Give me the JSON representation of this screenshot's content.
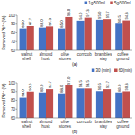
{
  "chart_data": [
    {
      "type": "bar",
      "subtitle": "(a)",
      "ylabel": "Removed Pb²⁺ (%)",
      "categories": [
        "walnut\nshell",
        "almond\nhusk",
        "olive\nstones",
        "corncob",
        "brambles\nstay",
        "coffee\nground"
      ],
      "series": [
        {
          "name": "1g/500mL",
          "color": "#4472C4",
          "values": [
            85.0,
            86.0,
            85.0,
            94.0,
            95.0,
            90.5
          ],
          "value_labels": [
            "85.0",
            "86.0",
            "85.0",
            "94.0",
            "95.0",
            "90.5"
          ]
        },
        {
          "name": "5g/500mL",
          "color": "#C0504D",
          "values": [
            87.7,
            87.3,
            98.0,
            97.3,
            95.7,
            94.3
          ],
          "value_labels": [
            "87.7",
            "87.3",
            "98.0",
            "97.3",
            "95.7",
            "94.3"
          ]
        }
      ],
      "ylim": [
        60,
        100
      ],
      "yticks": [
        60,
        70,
        80,
        90,
        100
      ],
      "data_labels": true,
      "legend": "upper right"
    },
    {
      "type": "bar",
      "subtitle": "(b)",
      "ylabel": "Removed Pb²⁺ (%)",
      "categories": [
        "walnut\nshell",
        "almond\nhusk",
        "olive\nstones",
        "corncob",
        "brambles\nstay",
        "coffee\nground"
      ],
      "series": [
        {
          "name": "30 (min)",
          "color": "#4472C4",
          "values": [
            83.0,
            89.0,
            88.0,
            93.5,
            90.5,
            89.0
          ],
          "value_labels": [
            "83.0",
            "89.0",
            "88.0",
            "93.5",
            "90.5",
            "89.0"
          ]
        },
        {
          "name": "60(min)",
          "color": "#C0504D",
          "values": [
            90.0,
            92.7,
            97.0,
            93.5,
            92.7,
            90.3
          ],
          "value_labels": [
            "90.0",
            "92.7",
            "97.0",
            "93.5",
            "92.7",
            "90.3"
          ]
        }
      ],
      "ylim": [
        60,
        100
      ],
      "yticks": [
        60,
        70,
        80,
        90,
        100
      ],
      "data_labels": true,
      "legend": "upper right"
    }
  ]
}
